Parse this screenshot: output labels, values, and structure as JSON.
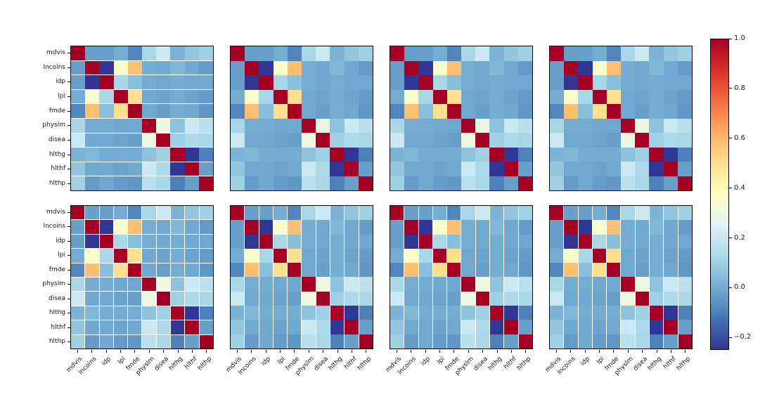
{
  "figure": {
    "background": "#ffffff",
    "variables": [
      "mdvis",
      "lncoins",
      "idp",
      "lpi",
      "fmde",
      "physlm",
      "disea",
      "hlthg",
      "hlthf",
      "hlthp"
    ],
    "panels": [
      {
        "id": "r0c0",
        "row": 0,
        "col": 0,
        "gaps": "row"
      },
      {
        "id": "r0c1",
        "row": 0,
        "col": 1,
        "gaps": "none"
      },
      {
        "id": "r0c2",
        "row": 0,
        "col": 2,
        "gaps": "none"
      },
      {
        "id": "r0c3",
        "row": 0,
        "col": 3,
        "gaps": "none"
      },
      {
        "id": "r1c0",
        "row": 1,
        "col": 0,
        "gaps": "both"
      },
      {
        "id": "r1c1",
        "row": 1,
        "col": 1,
        "gaps": "col"
      },
      {
        "id": "r1c2",
        "row": 1,
        "col": 2,
        "gaps": "col"
      },
      {
        "id": "r1c3",
        "row": 1,
        "col": 3,
        "gaps": "col"
      }
    ],
    "colormap": {
      "name": "RdYlBu_r",
      "vmin": -0.25,
      "vmax": 1.0,
      "anchors": [
        {
          "t": 0.0,
          "color": "#313695"
        },
        {
          "t": 0.1,
          "color": "#4575b4"
        },
        {
          "t": 0.2,
          "color": "#74add1"
        },
        {
          "t": 0.3,
          "color": "#abd9e9"
        },
        {
          "t": 0.4,
          "color": "#e0f3f8"
        },
        {
          "t": 0.5,
          "color": "#ffffbf"
        },
        {
          "t": 0.6,
          "color": "#fee090"
        },
        {
          "t": 0.7,
          "color": "#fdae61"
        },
        {
          "t": 0.8,
          "color": "#f46d43"
        },
        {
          "t": 0.9,
          "color": "#d73027"
        },
        {
          "t": 1.0,
          "color": "#a50026"
        }
      ]
    },
    "colorbar": {
      "tick_labels": [
        "1.0",
        "0.8",
        "0.6",
        "0.4",
        "0.2",
        "0.0",
        "−0.2"
      ],
      "tick_values": [
        1.0,
        0.8,
        0.6,
        0.4,
        0.2,
        0.0,
        -0.2
      ]
    }
  },
  "chart_data": {
    "type": "heatmap",
    "title": "",
    "layout": {
      "rows": 2,
      "cols": 4,
      "note": "all 8 panels display the same 10x10 correlation matrix",
      "colorbar_position": "right",
      "x_tick_rotation": 45
    },
    "x_labels": [
      "mdvis",
      "lncoins",
      "idp",
      "lpi",
      "fmde",
      "physlm",
      "disea",
      "hlthg",
      "hlthf",
      "hlthp"
    ],
    "y_labels": [
      "mdvis",
      "lncoins",
      "idp",
      "lpi",
      "fmde",
      "physlm",
      "disea",
      "hlthg",
      "hlthf",
      "hlthp"
    ],
    "values": [
      [
        1.0,
        -0.03,
        -0.03,
        0.0,
        -0.09,
        0.12,
        0.2,
        0.02,
        0.07,
        0.1
      ],
      [
        -0.03,
        1.0,
        -0.25,
        0.35,
        0.58,
        0.0,
        -0.01,
        0.03,
        -0.01,
        -0.04
      ],
      [
        -0.03,
        -0.25,
        1.0,
        0.12,
        0.05,
        0.0,
        -0.01,
        0.0,
        -0.01,
        -0.01
      ],
      [
        0.0,
        0.35,
        0.12,
        1.0,
        0.5,
        -0.01,
        -0.02,
        0.0,
        -0.02,
        -0.04
      ],
      [
        -0.09,
        0.58,
        0.05,
        0.5,
        1.0,
        -0.01,
        -0.03,
        0.0,
        -0.01,
        -0.05
      ],
      [
        0.12,
        0.0,
        0.0,
        -0.01,
        -0.01,
        1.0,
        0.3,
        0.06,
        0.2,
        0.16
      ],
      [
        0.2,
        -0.01,
        -0.01,
        -0.02,
        -0.03,
        0.3,
        1.0,
        0.1,
        0.13,
        0.12
      ],
      [
        0.02,
        0.03,
        0.0,
        0.0,
        0.0,
        0.06,
        0.1,
        1.0,
        -0.25,
        -0.1
      ],
      [
        0.07,
        -0.01,
        -0.01,
        -0.02,
        -0.01,
        0.2,
        0.13,
        -0.25,
        1.0,
        -0.03
      ],
      [
        0.1,
        -0.04,
        -0.01,
        -0.04,
        -0.05,
        0.16,
        0.12,
        -0.1,
        -0.03,
        1.0
      ]
    ],
    "vmin": -0.25,
    "vmax": 1.0,
    "colormap": "RdYlBu_r",
    "colorbar_ticks": [
      1.0,
      0.8,
      0.6,
      0.4,
      0.2,
      0.0,
      -0.2
    ]
  }
}
